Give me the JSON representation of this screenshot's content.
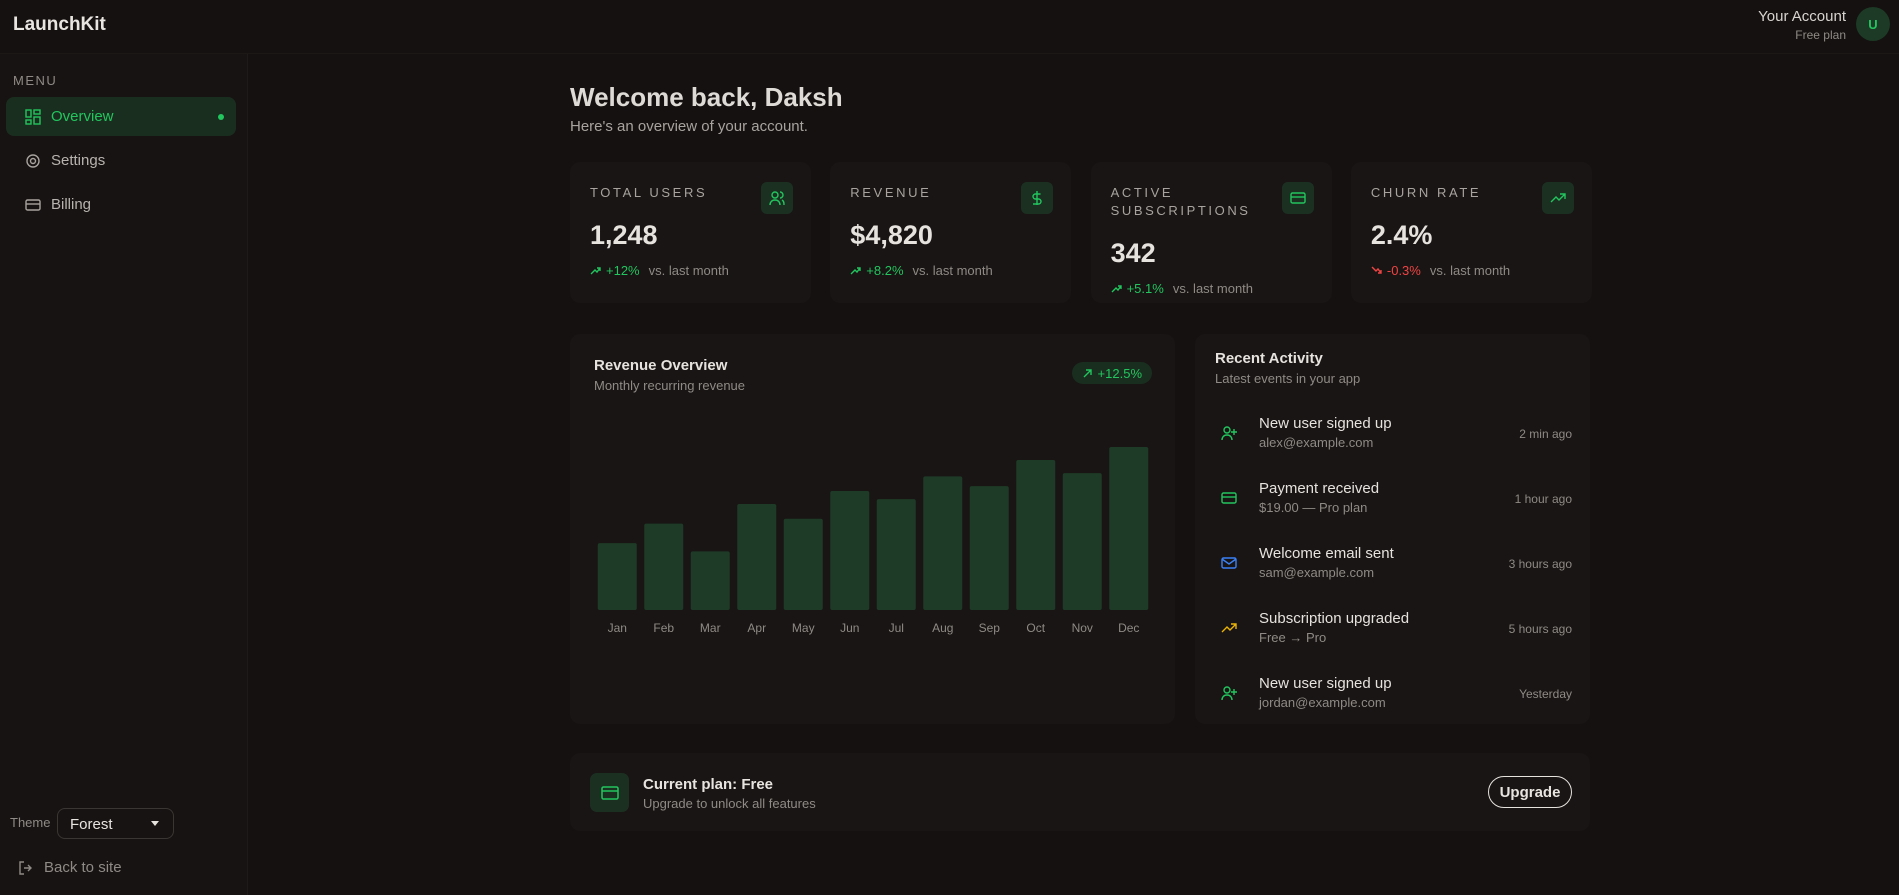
{
  "header": {
    "logo": "LaunchKit",
    "account_name": "Your Account",
    "account_plan": "Free plan",
    "avatar": "U"
  },
  "sidebar": {
    "menu_label": "MENU",
    "items": [
      "Overview",
      "Settings",
      "Billing"
    ],
    "theme_label": "Theme",
    "theme_value": "Forest",
    "back_link": "Back to site"
  },
  "main": {
    "title": "Welcome back, Daksh",
    "subtitle": "Here's an overview of your account."
  },
  "stats": [
    {
      "label": "TOTAL USERS",
      "value": "1,248",
      "change": "+12%",
      "comparison": "vs. last month"
    },
    {
      "label": "REVENUE",
      "value": "$4,820",
      "change": "+8.2%",
      "comparison": "vs. last month"
    },
    {
      "label": "ACTIVE SUBSCRIPTIONS",
      "value": "342",
      "change": "+5.1%",
      "comparison": "vs. last month"
    },
    {
      "label": "CHURN RATE",
      "value": "2.4%",
      "change": "-0.3%",
      "comparison": "vs. last month"
    }
  ],
  "chart_data": {
    "type": "bar",
    "title": "Revenue Overview",
    "subtitle": "Monthly recurring revenue",
    "badge": "+12.5%",
    "categories": [
      "Jan",
      "Feb",
      "Mar",
      "Apr",
      "May",
      "Jun",
      "Jul",
      "Aug",
      "Sep",
      "Oct",
      "Nov",
      "Dec"
    ],
    "values": [
      41,
      53,
      36,
      65,
      56,
      73,
      68,
      82,
      76,
      92,
      84,
      100
    ],
    "color": "#1e3b27"
  },
  "activity": {
    "title": "Recent Activity",
    "subtitle": "Latest events in your app",
    "items": [
      {
        "title": "New user signed up",
        "detail": "alex@example.com",
        "time": "2 min ago"
      },
      {
        "title": "Payment received",
        "detail": "$19.00 — Pro plan",
        "time": "1 hour ago"
      },
      {
        "title": "Welcome email sent",
        "detail": "sam@example.com",
        "time": "3 hours ago"
      },
      {
        "title": "Subscription upgraded",
        "detail": "Free → Pro",
        "time": "5 hours ago"
      },
      {
        "title": "New user signed up",
        "detail": "jordan@example.com",
        "time": "Yesterday"
      }
    ]
  },
  "plan": {
    "title": "Current plan: Free",
    "subtitle": "Upgrade to unlock all features",
    "button": "Upgrade"
  }
}
